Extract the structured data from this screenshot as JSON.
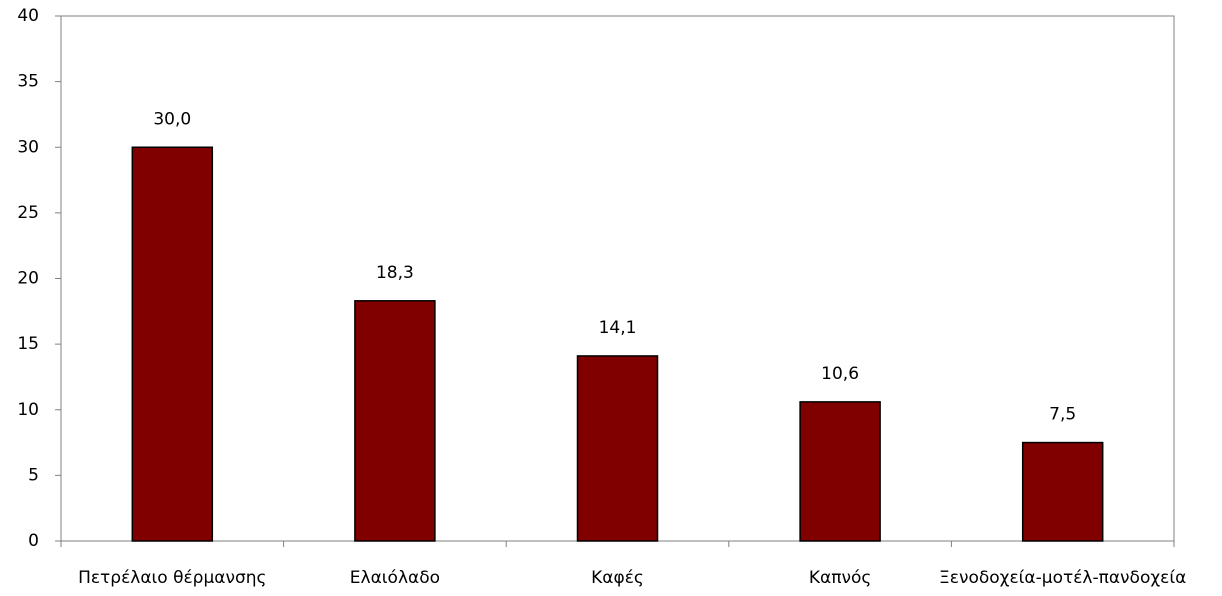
{
  "chart_data": {
    "type": "bar",
    "categories": [
      "Πετρέλαιο θέρμανσης",
      "Ελαιόλαδο",
      "Καφές",
      "Καπνός",
      "Ξενοδοχεία-μοτέλ-πανδοχεία"
    ],
    "values": [
      30.0,
      18.3,
      14.1,
      10.6,
      7.5
    ],
    "value_labels": [
      "30,0",
      "18,3",
      "14,1",
      "10,6",
      "7,5"
    ],
    "color": "#800000",
    "ylim": [
      0,
      40
    ],
    "yticks": [
      0,
      5,
      10,
      15,
      20,
      25,
      30,
      35,
      40
    ],
    "grid": false
  }
}
